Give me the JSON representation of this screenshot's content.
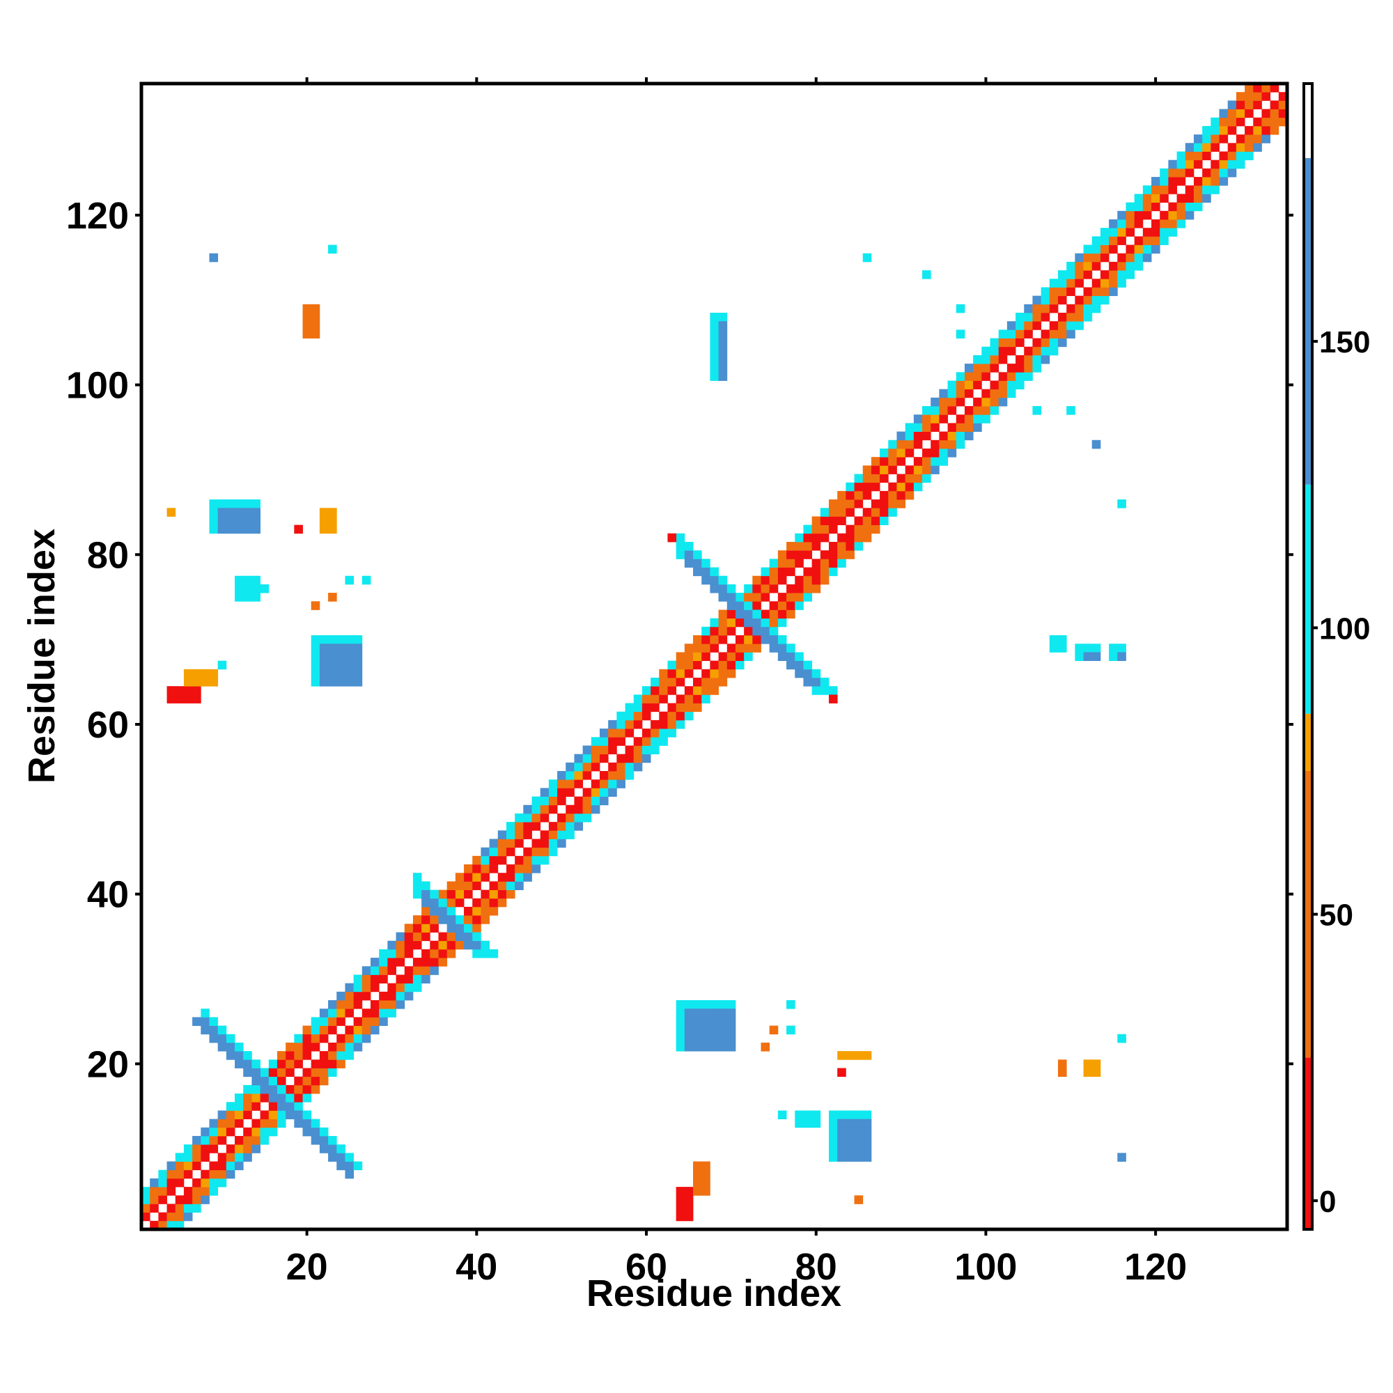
{
  "chart_data": {
    "type": "heatmap",
    "title": "",
    "xlabel": "Residue index",
    "ylabel": "Residue index",
    "xlim": [
      1,
      135
    ],
    "ylim": [
      1,
      135
    ],
    "x_ticks": [
      20,
      40,
      60,
      80,
      100,
      120
    ],
    "y_ticks": [
      20,
      40,
      60,
      80,
      100,
      120
    ],
    "grid": false,
    "colorbar": {
      "ticks": [
        0,
        50,
        100,
        150
      ],
      "range": [
        -5,
        195
      ],
      "bands": [
        {
          "from": -5,
          "to": 25,
          "color": "#f01010"
        },
        {
          "from": 25,
          "to": 75,
          "color": "#f07010"
        },
        {
          "from": 75,
          "to": 85,
          "color": "#f5a000"
        },
        {
          "from": 85,
          "to": 125,
          "color": "#10e8f0"
        },
        {
          "from": 125,
          "to": 182,
          "color": "#4a8fd0"
        },
        {
          "from": 182,
          "to": 195,
          "color": "#ffffff"
        }
      ]
    },
    "palette": {
      "red": "#f01010",
      "orange": "#f07010",
      "amber": "#f5a000",
      "cyan": "#10e8f0",
      "blue": "#4a8fd0"
    },
    "diagonal_band": {
      "from": 1,
      "to": 135,
      "half_width": 4
    },
    "cross_patterns": [
      {
        "i": 8,
        "j": 24,
        "len": 18,
        "width": 3,
        "color": "blue"
      },
      {
        "i": 64,
        "j": 80,
        "len": 16,
        "width": 3,
        "color": "blue"
      },
      {
        "i": 33,
        "j": 40,
        "len": 7,
        "width": 3,
        "color": "blue"
      }
    ],
    "offdiag_blocks": [
      {
        "x": 9,
        "y": 86,
        "w": 6,
        "h": 4,
        "color": "blue"
      },
      {
        "x": 12,
        "y": 77,
        "w": 3,
        "h": 3,
        "color": "cyan"
      },
      {
        "x": 21,
        "y": 70,
        "w": 6,
        "h": 6,
        "color": "blue"
      },
      {
        "x": 4,
        "y": 64,
        "w": 4,
        "h": 2,
        "color": "red"
      },
      {
        "x": 6,
        "y": 66,
        "w": 4,
        "h": 2,
        "color": "amber"
      },
      {
        "x": 64,
        "y": 27,
        "w": 7,
        "h": 6,
        "color": "blue"
      },
      {
        "x": 78,
        "y": 14,
        "w": 3,
        "h": 2,
        "color": "cyan"
      },
      {
        "x": 82,
        "y": 14,
        "w": 5,
        "h": 6,
        "color": "blue"
      },
      {
        "x": 68,
        "y": 108,
        "w": 2,
        "h": 8,
        "color": "blue"
      },
      {
        "x": 20,
        "y": 109,
        "w": 2,
        "h": 4,
        "color": "orange"
      },
      {
        "x": 22,
        "y": 85,
        "w": 2,
        "h": 3,
        "color": "amber"
      },
      {
        "x": 64,
        "y": 5,
        "w": 2,
        "h": 4,
        "color": "red"
      },
      {
        "x": 66,
        "y": 8,
        "w": 2,
        "h": 4,
        "color": "orange"
      },
      {
        "x": 108,
        "y": 70,
        "w": 2,
        "h": 2,
        "color": "cyan"
      },
      {
        "x": 111,
        "y": 69,
        "w": 3,
        "h": 2,
        "color": "blue"
      },
      {
        "x": 115,
        "y": 69,
        "w": 2,
        "h": 2,
        "color": "blue"
      },
      {
        "x": 109,
        "y": 20,
        "w": 1,
        "h": 2,
        "color": "orange"
      },
      {
        "x": 112,
        "y": 20,
        "w": 2,
        "h": 2,
        "color": "amber"
      },
      {
        "x": 83,
        "y": 21,
        "w": 4,
        "h": 1,
        "color": "amber"
      },
      {
        "x": 83,
        "y": 19,
        "w": 1,
        "h": 1,
        "color": "red"
      }
    ],
    "scattered_points": [
      {
        "x": 9,
        "y": 115,
        "color": "blue"
      },
      {
        "x": 23,
        "y": 116,
        "color": "cyan"
      },
      {
        "x": 86,
        "y": 115,
        "color": "cyan"
      },
      {
        "x": 93,
        "y": 113,
        "color": "cyan"
      },
      {
        "x": 97,
        "y": 109,
        "color": "cyan"
      },
      {
        "x": 97,
        "y": 106,
        "color": "cyan"
      },
      {
        "x": 106,
        "y": 97,
        "color": "cyan"
      },
      {
        "x": 110,
        "y": 97,
        "color": "cyan"
      },
      {
        "x": 113,
        "y": 93,
        "color": "blue"
      },
      {
        "x": 116,
        "y": 86,
        "color": "cyan"
      },
      {
        "x": 4,
        "y": 85,
        "color": "amber"
      },
      {
        "x": 19,
        "y": 83,
        "color": "red"
      },
      {
        "x": 25,
        "y": 77,
        "color": "cyan"
      },
      {
        "x": 27,
        "y": 77,
        "color": "cyan"
      },
      {
        "x": 15,
        "y": 76,
        "color": "cyan"
      },
      {
        "x": 23,
        "y": 75,
        "color": "orange"
      },
      {
        "x": 21,
        "y": 74,
        "color": "orange"
      },
      {
        "x": 10,
        "y": 67,
        "color": "cyan"
      },
      {
        "x": 77,
        "y": 27,
        "color": "cyan"
      },
      {
        "x": 77,
        "y": 24,
        "color": "cyan"
      },
      {
        "x": 75,
        "y": 24,
        "color": "orange"
      },
      {
        "x": 74,
        "y": 22,
        "color": "orange"
      },
      {
        "x": 116,
        "y": 23,
        "color": "cyan"
      },
      {
        "x": 76,
        "y": 14,
        "color": "cyan"
      },
      {
        "x": 116,
        "y": 9,
        "color": "blue"
      },
      {
        "x": 85,
        "y": 4,
        "color": "orange"
      },
      {
        "x": 63,
        "y": 82,
        "color": "red"
      },
      {
        "x": 82,
        "y": 63,
        "color": "red"
      }
    ]
  }
}
